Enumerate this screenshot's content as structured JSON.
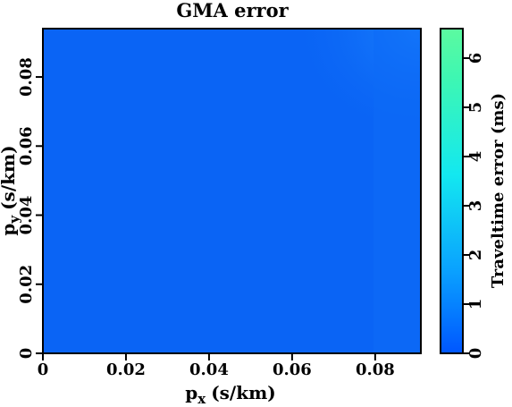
{
  "chart_data": {
    "type": "heatmap",
    "title": "GMA error",
    "xlabel": "p",
    "xlabel_sub": "x",
    "xlabel_unit": "(s/km)",
    "ylabel": "p",
    "ylabel_sub": "y",
    "ylabel_unit": "(s/km)",
    "colorbar_label": "Traveltime error (ms)",
    "xlim": [
      0,
      0.091
    ],
    "ylim": [
      0,
      0.094
    ],
    "colorbar_lim": [
      0,
      6.6
    ],
    "x_ticks": [
      0,
      0.02,
      0.04,
      0.06,
      0.08
    ],
    "x_tick_labels": [
      "0",
      "0.02",
      "0.04",
      "0.06",
      "0.08"
    ],
    "y_ticks": [
      0,
      0.02,
      0.04,
      0.06,
      0.08
    ],
    "y_tick_labels": [
      "0",
      "0.02",
      "0.04",
      "0.06",
      "0.08"
    ],
    "colorbar_ticks": [
      0,
      1,
      2,
      3,
      4,
      5,
      6
    ],
    "colorbar_tick_labels": [
      "0",
      "1",
      "2",
      "3",
      "4",
      "5",
      "6"
    ],
    "colormap": [
      "#0056ff",
      "#0aa0ff",
      "#13e8f0",
      "#3ef7b2",
      "#5cfaa0"
    ],
    "heatmap_uniform_value": 0.15,
    "heatmap_corner_value": 0.6,
    "heatmap_base_color": "#0a64f5"
  }
}
